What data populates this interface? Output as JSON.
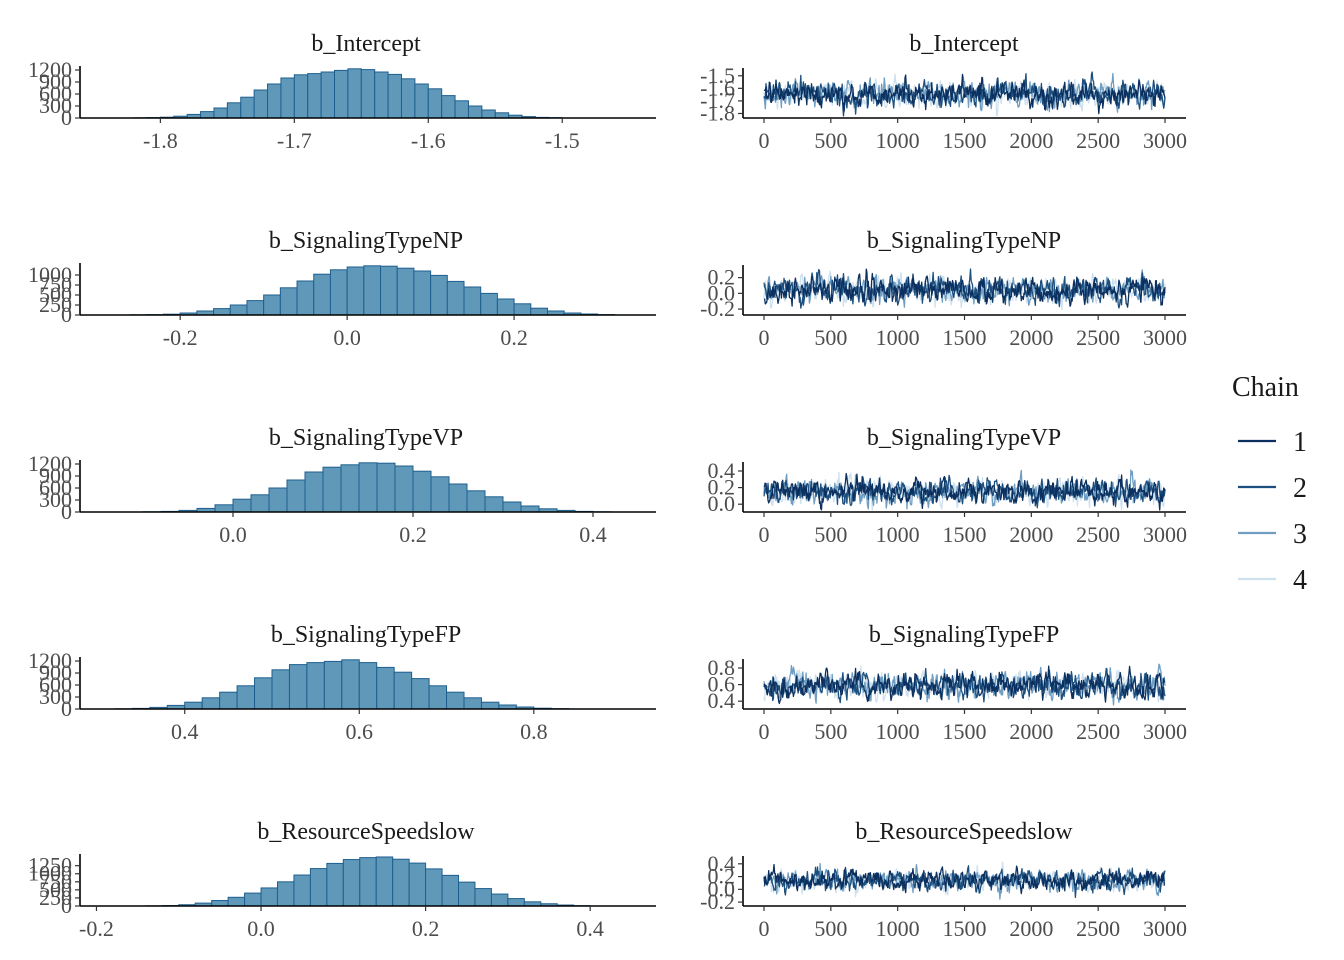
{
  "chart_data": {
    "type": "mcmc-diagnostics",
    "legend": {
      "title": "Chain",
      "placement": "right",
      "items": [
        {
          "label": "1",
          "color": "#0b2f5e"
        },
        {
          "label": "2",
          "color": "#1d4f7e"
        },
        {
          "label": "3",
          "color": "#6f9ec2"
        },
        {
          "label": "4",
          "color": "#cfe1ef"
        }
      ]
    },
    "histogram_fill": "#5f98b8",
    "histogram_edge": "#1f5f8f",
    "panels": [
      {
        "title": "b_Intercept",
        "hist": {
          "xlim": [
            -1.86,
            -1.43
          ],
          "xticks": [
            -1.8,
            -1.7,
            -1.6,
            -1.5
          ],
          "xtick_labels": [
            "-1.8",
            "-1.7",
            "-1.6",
            "-1.5"
          ],
          "ylim": [
            0,
            1250
          ],
          "yticks": [
            0,
            300,
            600,
            900,
            1200
          ],
          "ytick_labels": [
            "0",
            "300",
            "600",
            "900",
            "1200"
          ],
          "bins": [
            [
              -1.815,
              5
            ],
            [
              -1.805,
              10
            ],
            [
              -1.795,
              20
            ],
            [
              -1.785,
              45
            ],
            [
              -1.775,
              90
            ],
            [
              -1.765,
              160
            ],
            [
              -1.755,
              250
            ],
            [
              -1.745,
              380
            ],
            [
              -1.735,
              520
            ],
            [
              -1.725,
              700
            ],
            [
              -1.715,
              850
            ],
            [
              -1.705,
              1000
            ],
            [
              -1.695,
              1080
            ],
            [
              -1.685,
              1110
            ],
            [
              -1.675,
              1150
            ],
            [
              -1.665,
              1190
            ],
            [
              -1.655,
              1230
            ],
            [
              -1.645,
              1210
            ],
            [
              -1.635,
              1150
            ],
            [
              -1.625,
              1090
            ],
            [
              -1.615,
              980
            ],
            [
              -1.605,
              850
            ],
            [
              -1.595,
              730
            ],
            [
              -1.585,
              560
            ],
            [
              -1.575,
              430
            ],
            [
              -1.565,
              300
            ],
            [
              -1.555,
              200
            ],
            [
              -1.545,
              130
            ],
            [
              -1.535,
              70
            ],
            [
              -1.525,
              35
            ],
            [
              -1.515,
              15
            ],
            [
              -1.505,
              8
            ]
          ]
        },
        "trace": {
          "xlim": [
            0,
            3000
          ],
          "xticks": [
            0,
            500,
            1000,
            1500,
            2000,
            2500,
            3000
          ],
          "xtick_labels": [
            "0",
            "500",
            "1000",
            "1500",
            "2000",
            "2500",
            "3000"
          ],
          "ylim": [
            -1.82,
            -1.47
          ],
          "yticks": [
            -1.8,
            -1.7,
            -1.6,
            -1.5
          ],
          "ytick_labels": [
            "-1.8",
            "-1.7",
            "-1.6",
            "-1.5"
          ],
          "center": -1.645,
          "sd": 0.05
        }
      },
      {
        "title": "b_SignalingTypeNP",
        "hist": {
          "xlim": [
            -0.32,
            0.37
          ],
          "xticks": [
            -0.2,
            0.0,
            0.2
          ],
          "xtick_labels": [
            "-0.2",
            "0.0",
            "0.2"
          ],
          "ylim": [
            0,
            1250
          ],
          "yticks": [
            0,
            250,
            500,
            750,
            1000
          ],
          "ytick_labels": [
            "0",
            "250",
            "500",
            "750",
            "1000"
          ],
          "bins": [
            [
              -0.25,
              5
            ],
            [
              -0.23,
              10
            ],
            [
              -0.21,
              20
            ],
            [
              -0.19,
              50
            ],
            [
              -0.17,
              100
            ],
            [
              -0.15,
              160
            ],
            [
              -0.13,
              250
            ],
            [
              -0.11,
              360
            ],
            [
              -0.09,
              500
            ],
            [
              -0.07,
              680
            ],
            [
              -0.05,
              850
            ],
            [
              -0.03,
              1020
            ],
            [
              -0.01,
              1130
            ],
            [
              0.01,
              1200
            ],
            [
              0.03,
              1230
            ],
            [
              0.05,
              1220
            ],
            [
              0.07,
              1170
            ],
            [
              0.09,
              1100
            ],
            [
              0.11,
              990
            ],
            [
              0.13,
              840
            ],
            [
              0.15,
              700
            ],
            [
              0.17,
              540
            ],
            [
              0.19,
              400
            ],
            [
              0.21,
              280
            ],
            [
              0.23,
              170
            ],
            [
              0.25,
              100
            ],
            [
              0.27,
              50
            ],
            [
              0.29,
              25
            ],
            [
              0.31,
              10
            ]
          ]
        },
        "trace": {
          "xlim": [
            0,
            3000
          ],
          "xticks": [
            0,
            500,
            1000,
            1500,
            2000,
            2500,
            3000
          ],
          "xtick_labels": [
            "0",
            "500",
            "1000",
            "1500",
            "2000",
            "2500",
            "3000"
          ],
          "ylim": [
            -0.25,
            0.31
          ],
          "yticks": [
            -0.2,
            0.0,
            0.2
          ],
          "ytick_labels": [
            "-0.2",
            "0.0",
            "0.2"
          ],
          "center": 0.04,
          "sd": 0.08
        }
      },
      {
        "title": "b_SignalingTypeVP",
        "hist": {
          "xlim": [
            -0.17,
            0.47
          ],
          "xticks": [
            0.0,
            0.2,
            0.4
          ],
          "xtick_labels": [
            "0.0",
            "0.2",
            "0.4"
          ],
          "ylim": [
            0,
            1250
          ],
          "yticks": [
            0,
            300,
            600,
            900,
            1200
          ],
          "ytick_labels": [
            "0",
            "300",
            "600",
            "900",
            "1200"
          ],
          "bins": [
            [
              -0.09,
              5
            ],
            [
              -0.07,
              15
            ],
            [
              -0.05,
              40
            ],
            [
              -0.03,
              90
            ],
            [
              -0.01,
              180
            ],
            [
              0.01,
              320
            ],
            [
              0.03,
              430
            ],
            [
              0.05,
              600
            ],
            [
              0.07,
              800
            ],
            [
              0.09,
              1000
            ],
            [
              0.11,
              1120
            ],
            [
              0.13,
              1180
            ],
            [
              0.15,
              1230
            ],
            [
              0.17,
              1220
            ],
            [
              0.19,
              1150
            ],
            [
              0.21,
              1020
            ],
            [
              0.23,
              880
            ],
            [
              0.25,
              700
            ],
            [
              0.27,
              530
            ],
            [
              0.29,
              380
            ],
            [
              0.31,
              250
            ],
            [
              0.33,
              150
            ],
            [
              0.35,
              80
            ],
            [
              0.37,
              40
            ],
            [
              0.39,
              15
            ],
            [
              0.41,
              5
            ]
          ]
        },
        "trace": {
          "xlim": [
            0,
            3000
          ],
          "xticks": [
            0,
            500,
            1000,
            1500,
            2000,
            2500,
            3000
          ],
          "xtick_labels": [
            "0",
            "500",
            "1000",
            "1500",
            "2000",
            "2500",
            "3000"
          ],
          "ylim": [
            -0.07,
            0.46
          ],
          "yticks": [
            0.0,
            0.2,
            0.4
          ],
          "ytick_labels": [
            "0.0",
            "0.2",
            "0.4"
          ],
          "center": 0.15,
          "sd": 0.075
        }
      },
      {
        "title": "b_SignalingTypeFP",
        "hist": {
          "xlim": [
            0.28,
            0.94
          ],
          "xticks": [
            0.4,
            0.6,
            0.8
          ],
          "xtick_labels": [
            "0.4",
            "0.6",
            "0.8"
          ],
          "ylim": [
            0,
            1250
          ],
          "yticks": [
            0,
            300,
            600,
            900,
            1200
          ],
          "ytick_labels": [
            "0",
            "300",
            "600",
            "900",
            "1200"
          ],
          "bins": [
            [
              0.33,
              5
            ],
            [
              0.35,
              15
            ],
            [
              0.37,
              40
            ],
            [
              0.39,
              90
            ],
            [
              0.41,
              170
            ],
            [
              0.43,
              280
            ],
            [
              0.45,
              420
            ],
            [
              0.47,
              580
            ],
            [
              0.49,
              780
            ],
            [
              0.51,
              980
            ],
            [
              0.53,
              1110
            ],
            [
              0.55,
              1160
            ],
            [
              0.57,
              1190
            ],
            [
              0.59,
              1230
            ],
            [
              0.61,
              1160
            ],
            [
              0.63,
              1040
            ],
            [
              0.65,
              920
            ],
            [
              0.67,
              760
            ],
            [
              0.69,
              580
            ],
            [
              0.71,
              420
            ],
            [
              0.73,
              280
            ],
            [
              0.75,
              170
            ],
            [
              0.77,
              100
            ],
            [
              0.79,
              50
            ],
            [
              0.81,
              20
            ],
            [
              0.83,
              8
            ]
          ]
        },
        "trace": {
          "xlim": [
            0,
            3000
          ],
          "xticks": [
            0,
            500,
            1000,
            1500,
            2000,
            2500,
            3000
          ],
          "xtick_labels": [
            "0",
            "500",
            "1000",
            "1500",
            "2000",
            "2500",
            "3000"
          ],
          "ylim": [
            0.33,
            0.86
          ],
          "yticks": [
            0.4,
            0.6,
            0.8
          ],
          "ytick_labels": [
            "0.4",
            "0.6",
            "0.8"
          ],
          "center": 0.59,
          "sd": 0.075
        }
      },
      {
        "title": "b_ResourceSpeedslow",
        "hist": {
          "xlim": [
            -0.22,
            0.48
          ],
          "xticks": [
            -0.2,
            0.0,
            0.2,
            0.4
          ],
          "xtick_labels": [
            "-0.2",
            "0.0",
            "0.2",
            "0.4"
          ],
          "ylim": [
            0,
            1550
          ],
          "yticks": [
            0,
            250,
            500,
            750,
            1000,
            1250
          ],
          "ytick_labels": [
            "0",
            "250",
            "500",
            "750",
            "1000",
            "1250"
          ],
          "bins": [
            [
              -0.13,
              5
            ],
            [
              -0.11,
              15
            ],
            [
              -0.09,
              40
            ],
            [
              -0.07,
              90
            ],
            [
              -0.05,
              170
            ],
            [
              -0.03,
              270
            ],
            [
              -0.01,
              400
            ],
            [
              0.01,
              560
            ],
            [
              0.03,
              750
            ],
            [
              0.05,
              960
            ],
            [
              0.07,
              1160
            ],
            [
              0.09,
              1320
            ],
            [
              0.11,
              1440
            ],
            [
              0.13,
              1500
            ],
            [
              0.15,
              1520
            ],
            [
              0.17,
              1450
            ],
            [
              0.19,
              1330
            ],
            [
              0.21,
              1150
            ],
            [
              0.23,
              950
            ],
            [
              0.25,
              740
            ],
            [
              0.27,
              540
            ],
            [
              0.29,
              370
            ],
            [
              0.31,
              230
            ],
            [
              0.33,
              130
            ],
            [
              0.35,
              70
            ],
            [
              0.37,
              30
            ],
            [
              0.39,
              10
            ]
          ]
        },
        "trace": {
          "xlim": [
            0,
            3000
          ],
          "xticks": [
            0,
            500,
            1000,
            1500,
            2000,
            2500,
            3000
          ],
          "xtick_labels": [
            "0",
            "500",
            "1000",
            "1500",
            "2000",
            "2500",
            "3000"
          ],
          "ylim": [
            -0.23,
            0.46
          ],
          "yticks": [
            -0.2,
            0.0,
            0.2,
            0.4
          ],
          "ytick_labels": [
            "-0.2",
            "0.0",
            "0.2",
            "0.4"
          ],
          "center": 0.14,
          "sd": 0.08
        }
      }
    ]
  }
}
